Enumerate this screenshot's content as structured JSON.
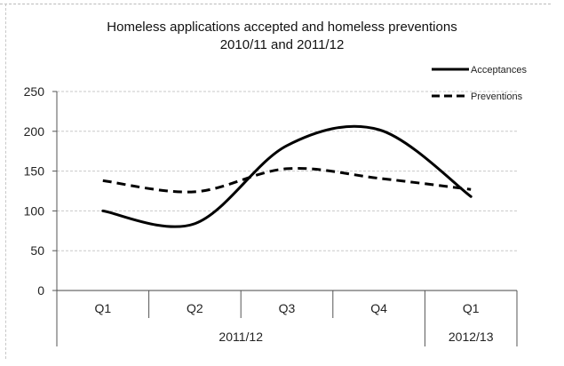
{
  "chart_data": {
    "type": "line",
    "title": "Homeless applications accepted and homeless preventions",
    "subtitle": "2010/11 and 2011/12",
    "categories": [
      "Q1",
      "Q2",
      "Q3",
      "Q4",
      "Q1"
    ],
    "year_groups": [
      {
        "label": "2011/12",
        "span": [
          0,
          3
        ]
      },
      {
        "label": "2012/13",
        "span": [
          4,
          4
        ]
      }
    ],
    "series": [
      {
        "name": "Acceptances",
        "style": "solid",
        "color": "#000000",
        "values": [
          100,
          84,
          182,
          202,
          118
        ]
      },
      {
        "name": "Preventions",
        "style": "dashed",
        "color": "#000000",
        "values": [
          138,
          124,
          153,
          141,
          127
        ]
      }
    ],
    "ylim": [
      0,
      250
    ],
    "yticks": [
      0,
      50,
      100,
      150,
      200,
      250
    ],
    "grid": true,
    "legend_position": "top-right"
  }
}
